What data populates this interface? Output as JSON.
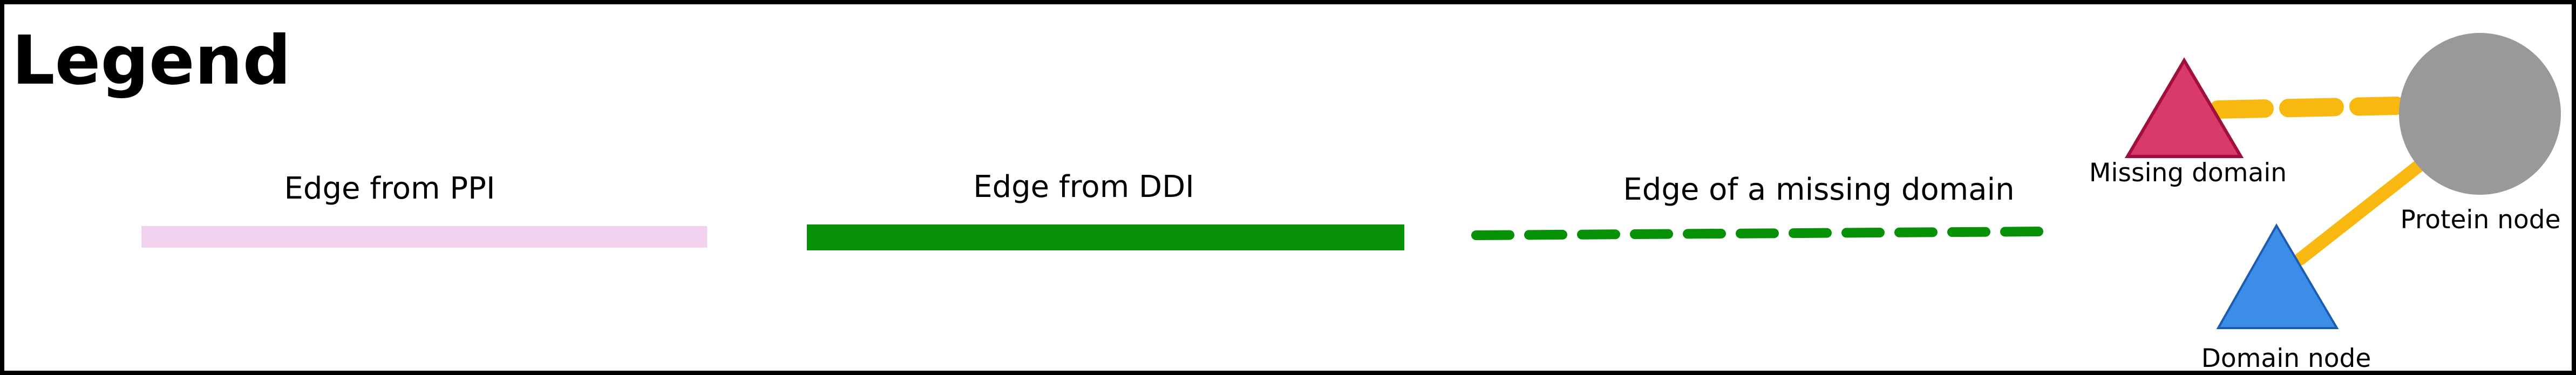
{
  "legend": {
    "title": "Legend",
    "border_color": "#000000",
    "edges": [
      {
        "label": "Edge from PPI",
        "style": "solid-thin",
        "color": "#f2d3ef"
      },
      {
        "label": "Edge from DDI",
        "style": "solid-thick",
        "color": "#069106"
      },
      {
        "label": "Edge of a missing domain",
        "style": "dashed",
        "color": "#069106"
      }
    ],
    "diagram": {
      "missing_domain_label": "Missing domain",
      "protein_node_label": "Protein node",
      "domain_node_label": "Domain node",
      "missing_domain_color": "#d93a6a",
      "missing_domain_stroke": "#a0103c",
      "domain_node_color": "#3b8de8",
      "domain_node_stroke": "#1a5cb0",
      "protein_node_color": "#999999",
      "connector_color": "#f9b80f"
    }
  }
}
